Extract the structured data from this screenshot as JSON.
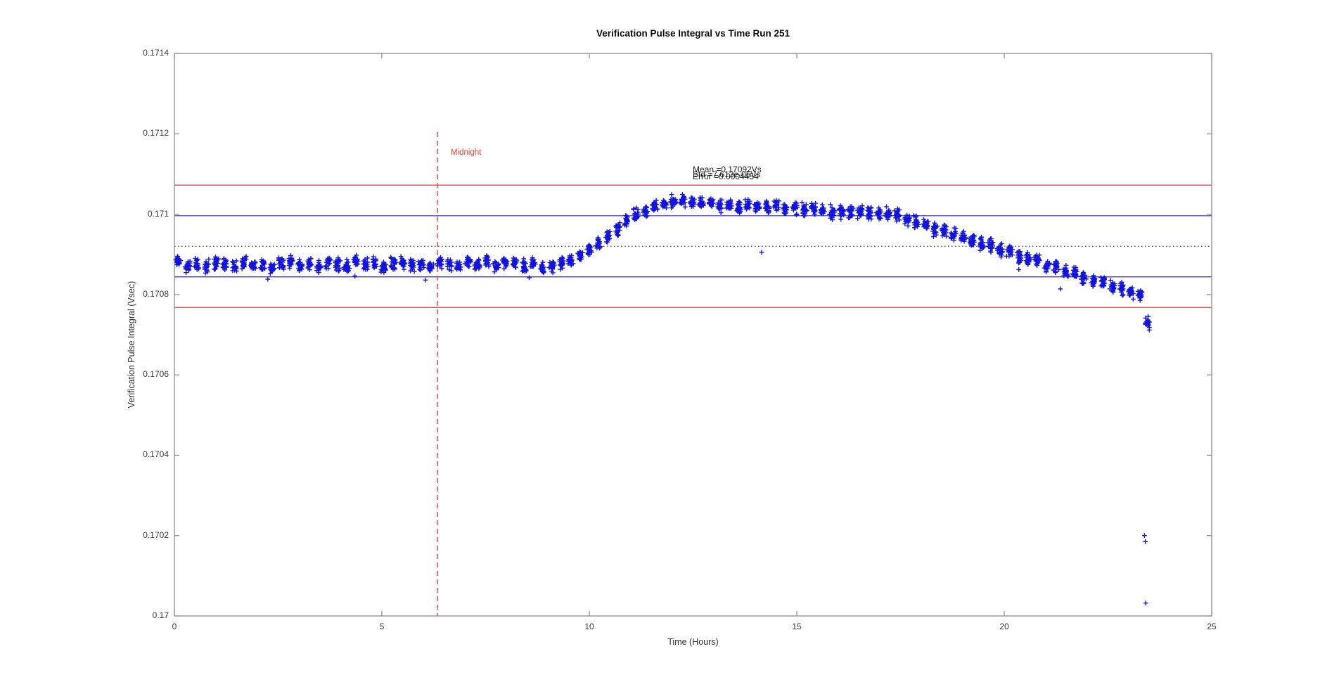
{
  "chart_data": {
    "type": "scatter",
    "title": "Verification Pulse Integral vs Time Run 251",
    "xlabel": "Time (Hours)",
    "ylabel": "Verification Pulse Integral (Vsec)",
    "xlim": [
      0,
      25
    ],
    "ylim": [
      0.17,
      0.1714
    ],
    "grid": false,
    "marker": "+",
    "xticks": [
      0,
      5,
      10,
      15,
      20,
      25
    ],
    "xtick_labels": [
      "0",
      "5",
      "10",
      "15",
      "20",
      "25"
    ],
    "yticks": [
      0.17,
      0.1702,
      0.1704,
      0.1706,
      0.1708,
      0.171,
      0.1712,
      0.1714
    ],
    "ytick_labels": [
      "0.17",
      "0.1702",
      "0.1704",
      "0.1706",
      "0.1708",
      "0.171",
      "0.1712",
      "0.1714"
    ],
    "colors": {
      "marker": "#1212dd",
      "sigma_line": "#2828d4",
      "two_sigma_line": "#ee2e2e",
      "mean_line": "#4a4a4a",
      "axis": "#8a8a8a",
      "tick_label": "#3a3a3a",
      "annotation": "#1b1b1b",
      "midnight": "#f4524a"
    },
    "annotation": {
      "mean_label": "Mean =0.17092Vs",
      "std_label": "Std =7.613e-05Vs",
      "error_label": "Error =0.0004454"
    },
    "stats": {
      "mean_vs": 0.17092,
      "std_vs": 7.613e-05,
      "fractional_error": 0.0004454
    },
    "reference_lines": [
      {
        "name": "plus-two-sigma",
        "value": 0.1710723,
        "style": "solid",
        "color": "#ee2e2e"
      },
      {
        "name": "plus-one-sigma",
        "value": 0.1709961,
        "style": "solid",
        "color": "#2828d4"
      },
      {
        "name": "mean",
        "value": 0.17092,
        "style": "dotted",
        "color": "#4a4a4a"
      },
      {
        "name": "minus-one-sigma",
        "value": 0.1708439,
        "style": "solid",
        "color": "#2828d4"
      },
      {
        "name": "minus-two-sigma",
        "value": 0.1707677,
        "style": "solid",
        "color": "#ee2e2e"
      }
    ],
    "midnight_marker": {
      "time": 6.34,
      "label": "Midnight",
      "style": "dashed",
      "color": "#f4524a",
      "line_top_value": 0.171204
    },
    "cluster_points_each": 22,
    "cluster_jitter": {
      "t": 0.075,
      "v": 2.2e-05
    },
    "clusters": [
      [
        0.1,
        0.170881
      ],
      [
        0.325,
        0.170871
      ],
      [
        0.55,
        0.170877
      ],
      [
        0.775,
        0.170868
      ],
      [
        1.0,
        0.17088
      ],
      [
        1.225,
        0.170875
      ],
      [
        1.45,
        0.17087
      ],
      [
        1.675,
        0.170883
      ],
      [
        1.9,
        0.170873
      ],
      [
        2.125,
        0.170878
      ],
      [
        2.35,
        0.170869
      ],
      [
        2.575,
        0.170879
      ],
      [
        2.8,
        0.170881
      ],
      [
        3.025,
        0.170871
      ],
      [
        3.25,
        0.170877
      ],
      [
        3.475,
        0.170868
      ],
      [
        3.7,
        0.17088
      ],
      [
        3.925,
        0.170875
      ],
      [
        4.15,
        0.17087
      ],
      [
        4.375,
        0.170883
      ],
      [
        4.6,
        0.170873
      ],
      [
        4.825,
        0.170878
      ],
      [
        5.05,
        0.170869
      ],
      [
        5.275,
        0.170879
      ],
      [
        5.5,
        0.170881
      ],
      [
        5.725,
        0.170871
      ],
      [
        5.95,
        0.170877
      ],
      [
        6.175,
        0.170868
      ],
      [
        6.4,
        0.17088
      ],
      [
        6.625,
        0.170875
      ],
      [
        6.85,
        0.17087
      ],
      [
        7.075,
        0.170883
      ],
      [
        7.3,
        0.170873
      ],
      [
        7.525,
        0.170878
      ],
      [
        7.75,
        0.170869
      ],
      [
        7.975,
        0.170879
      ],
      [
        8.2,
        0.170881
      ],
      [
        8.425,
        0.170871
      ],
      [
        8.65,
        0.170877
      ],
      [
        8.875,
        0.170866
      ],
      [
        9.1,
        0.170872
      ],
      [
        9.325,
        0.170879
      ],
      [
        9.55,
        0.170887
      ],
      [
        9.775,
        0.170898
      ],
      [
        10.0,
        0.170912
      ],
      [
        10.225,
        0.170928
      ],
      [
        10.45,
        0.170946
      ],
      [
        10.675,
        0.170963
      ],
      [
        10.9,
        0.170981
      ],
      [
        11.125,
        0.170997
      ],
      [
        11.35,
        0.17101
      ],
      [
        11.575,
        0.171021
      ],
      [
        11.8,
        0.171028
      ],
      [
        12.025,
        0.171032
      ],
      [
        12.25,
        0.171034
      ],
      [
        12.475,
        0.171028
      ],
      [
        12.7,
        0.171028
      ],
      [
        12.925,
        0.171029
      ],
      [
        13.15,
        0.171022
      ],
      [
        13.375,
        0.171026
      ],
      [
        13.6,
        0.171021
      ],
      [
        13.825,
        0.171023
      ],
      [
        14.05,
        0.17102
      ],
      [
        14.275,
        0.171016
      ],
      [
        14.5,
        0.17102
      ],
      [
        14.725,
        0.171014
      ],
      [
        14.95,
        0.171017
      ],
      [
        15.175,
        0.17101
      ],
      [
        15.4,
        0.171011
      ],
      [
        15.625,
        0.171011
      ],
      [
        15.85,
        0.171005
      ],
      [
        16.075,
        0.171007
      ],
      [
        16.3,
        0.171004
      ],
      [
        16.525,
        0.171006
      ],
      [
        16.75,
        0.171002
      ],
      [
        16.975,
        0.170999
      ],
      [
        17.2,
        0.171001
      ],
      [
        17.425,
        0.170999
      ],
      [
        17.65,
        0.170986
      ],
      [
        17.875,
        0.170981
      ],
      [
        18.1,
        0.170975
      ],
      [
        18.325,
        0.170962
      ],
      [
        18.55,
        0.170959
      ],
      [
        18.775,
        0.170949
      ],
      [
        19.0,
        0.170945
      ],
      [
        19.225,
        0.170935
      ],
      [
        19.45,
        0.170925
      ],
      [
        19.675,
        0.170923
      ],
      [
        19.9,
        0.170911
      ],
      [
        20.125,
        0.170908
      ],
      [
        20.35,
        0.170895
      ],
      [
        20.575,
        0.170889
      ],
      [
        20.8,
        0.170884
      ],
      [
        21.025,
        0.170871
      ],
      [
        21.25,
        0.170868
      ],
      [
        21.475,
        0.170858
      ],
      [
        21.7,
        0.170853
      ],
      [
        21.925,
        0.170844
      ],
      [
        22.15,
        0.170834
      ],
      [
        22.375,
        0.170831
      ],
      [
        22.6,
        0.17082
      ],
      [
        22.825,
        0.170816
      ],
      [
        23.05,
        0.170804
      ],
      [
        23.275,
        0.170798
      ],
      [
        23.45,
        0.170728
      ]
    ],
    "stray_points": [
      [
        2.25,
        0.170838
      ],
      [
        4.35,
        0.170846
      ],
      [
        6.05,
        0.170836
      ],
      [
        8.55,
        0.170842
      ],
      [
        14.15,
        0.170905
      ],
      [
        20.35,
        0.170862
      ],
      [
        21.35,
        0.170814
      ]
    ],
    "low_outlier_points": [
      [
        23.38,
        0.1702
      ],
      [
        23.4,
        0.170185
      ],
      [
        23.41,
        0.170032
      ]
    ]
  }
}
